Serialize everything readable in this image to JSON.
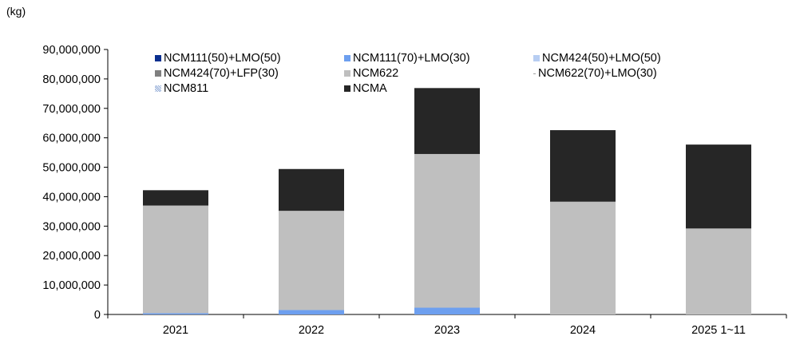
{
  "unit_label": "(kg)",
  "chart_data": {
    "type": "bar",
    "stacked": true,
    "categories": [
      "2021",
      "2022",
      "2023",
      "2024",
      "2025 1~11"
    ],
    "ylim": [
      0,
      90000000
    ],
    "yticks": [
      "0",
      "10,000,000",
      "20,000,000",
      "30,000,000",
      "40,000,000",
      "50,000,000",
      "60,000,000",
      "70,000,000",
      "80,000,000",
      "90,000,000"
    ],
    "ytick_values": [
      0,
      10000000,
      20000000,
      30000000,
      40000000,
      50000000,
      60000000,
      70000000,
      80000000,
      90000000
    ],
    "grid": false,
    "legend_position": "top",
    "series": [
      {
        "name": "NCM111(50)+LMO(50)",
        "color": "#0a2f8f",
        "values": [
          0,
          0,
          0,
          0,
          0
        ]
      },
      {
        "name": "NCM111(70)+LMO(30)",
        "color": "#6d9fef",
        "values": [
          400000,
          1500000,
          2300000,
          0,
          0
        ]
      },
      {
        "name": "NCM424(50)+LMO(50)",
        "color": "#b7cdf2",
        "values": [
          0,
          0,
          0,
          0,
          0
        ]
      },
      {
        "name": "NCM424(70)+LFP(30)",
        "color": "#7f7f7f",
        "values": [
          0,
          0,
          0,
          0,
          0
        ]
      },
      {
        "name": "NCM622",
        "color": "#bfbfbf",
        "values": [
          36600000,
          33700000,
          52200000,
          38300000,
          29200000
        ]
      },
      {
        "name": "NCM622(70)+LMO(30)",
        "color": "#9e9e9e",
        "values": [
          0,
          0,
          0,
          0,
          0
        ]
      },
      {
        "name": "NCM811",
        "color": "#8fa9d6",
        "values": [
          0,
          0,
          0,
          0,
          0
        ]
      },
      {
        "name": "NCMA",
        "color": "#262626",
        "values": [
          5200000,
          14200000,
          22400000,
          24300000,
          28500000
        ]
      }
    ]
  }
}
